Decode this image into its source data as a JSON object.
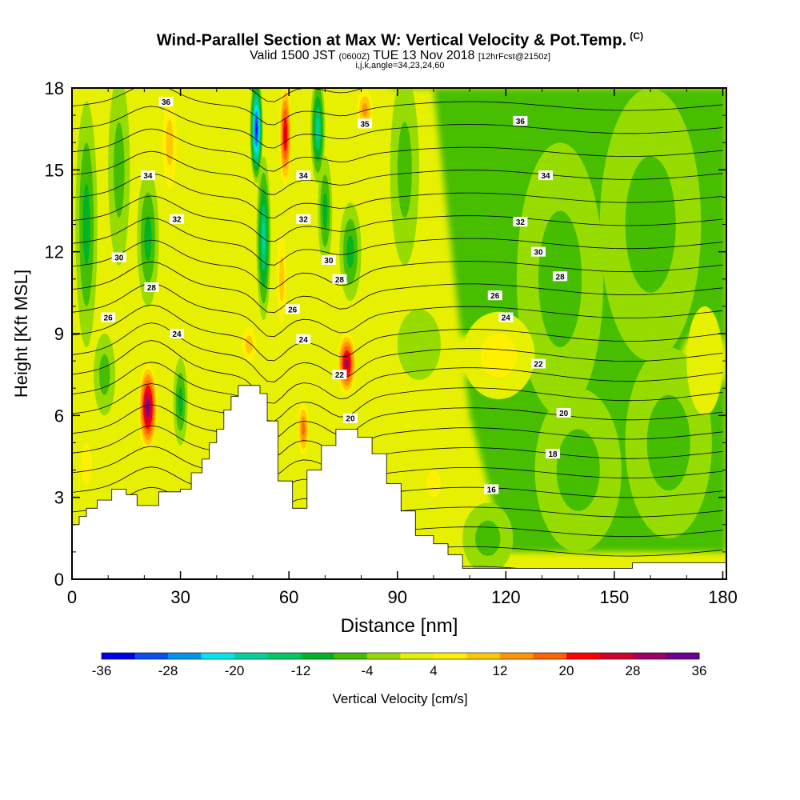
{
  "chart_data": {
    "type": "heatmap",
    "title": "Wind-Parallel Section at Max W: Vertical Velocity & Pot.Temp.",
    "title_mark": "(C)",
    "subtitle_prefix": "Valid 1500 JST",
    "subtitle_z": "(0600Z)",
    "subtitle_date": "TUE 13 Nov 2018",
    "subtitle_fcst": "[12hrFcst@2150z]",
    "subtitle2": "i,j,k,angle=34,23,24,60",
    "xlabel": "Distance [nm]",
    "ylabel": "Height [Kft MSL]",
    "xlim": [
      0,
      181
    ],
    "ylim": [
      0,
      18
    ],
    "x_ticks": [
      "0",
      "30",
      "60",
      "90",
      "120",
      "150",
      "180"
    ],
    "y_ticks": [
      "0",
      "3",
      "6",
      "9",
      "12",
      "15",
      "18"
    ],
    "colorbar": {
      "label": "Vertical Velocity [cm/s]",
      "tick_labels": [
        "-36",
        "-28",
        "-20",
        "-12",
        "-4",
        "4",
        "12",
        "20",
        "28",
        "36"
      ],
      "colors": [
        "#0000f0",
        "#0a50f0",
        "#0096f0",
        "#00e6f0",
        "#00d2a0",
        "#00c864",
        "#00b428",
        "#46be00",
        "#96dc00",
        "#e6f000",
        "#fff000",
        "#ffc800",
        "#ff9600",
        "#ff6400",
        "#ff0000",
        "#d20028",
        "#a00064",
        "#6e0096"
      ]
    },
    "terrain": [
      [
        0,
        2
      ],
      [
        2,
        2.3
      ],
      [
        4,
        2.6
      ],
      [
        7,
        2.9
      ],
      [
        11,
        3.3
      ],
      [
        15,
        3.1
      ],
      [
        18,
        2.7
      ],
      [
        24,
        3.2
      ],
      [
        30,
        3.3
      ],
      [
        33,
        3.9
      ],
      [
        36,
        4.4
      ],
      [
        38,
        5.0
      ],
      [
        40,
        5.5
      ],
      [
        42,
        6.2
      ],
      [
        44,
        6.7
      ],
      [
        46,
        7.1
      ],
      [
        52,
        6.8
      ],
      [
        54,
        5.8
      ],
      [
        57,
        3.6
      ],
      [
        61,
        2.6
      ],
      [
        65,
        4.0
      ],
      [
        69,
        4.9
      ],
      [
        73,
        5.5
      ],
      [
        79,
        5.2
      ],
      [
        83,
        4.6
      ],
      [
        87,
        3.5
      ],
      [
        91,
        2.5
      ],
      [
        95,
        1.6
      ],
      [
        100,
        1.3
      ],
      [
        104,
        0.9
      ],
      [
        108,
        0.4
      ],
      [
        150,
        0.4
      ],
      [
        155,
        0.6
      ],
      [
        181,
        0.6
      ]
    ],
    "theta_labels": [
      {
        "x": 26,
        "y": 17.5,
        "label": "36"
      },
      {
        "x": 81,
        "y": 16.7,
        "label": "35"
      },
      {
        "x": 124,
        "y": 16.8,
        "label": "36"
      },
      {
        "x": 21,
        "y": 14.8,
        "label": "34"
      },
      {
        "x": 64,
        "y": 14.8,
        "label": "34"
      },
      {
        "x": 131,
        "y": 14.8,
        "label": "34"
      },
      {
        "x": 29,
        "y": 13.2,
        "label": "32"
      },
      {
        "x": 64,
        "y": 13.2,
        "label": "32"
      },
      {
        "x": 124,
        "y": 13.1,
        "label": "32"
      },
      {
        "x": 13,
        "y": 11.8,
        "label": "30"
      },
      {
        "x": 71,
        "y": 11.7,
        "label": "30"
      },
      {
        "x": 129,
        "y": 12.0,
        "label": "30"
      },
      {
        "x": 22,
        "y": 10.7,
        "label": "28"
      },
      {
        "x": 74,
        "y": 11.0,
        "label": "28"
      },
      {
        "x": 135,
        "y": 11.1,
        "label": "28"
      },
      {
        "x": 10,
        "y": 9.6,
        "label": "26"
      },
      {
        "x": 61,
        "y": 9.9,
        "label": "26"
      },
      {
        "x": 117,
        "y": 10.4,
        "label": "26"
      },
      {
        "x": 29,
        "y": 9.0,
        "label": "24"
      },
      {
        "x": 64,
        "y": 8.8,
        "label": "24"
      },
      {
        "x": 120,
        "y": 9.6,
        "label": "24"
      },
      {
        "x": 74,
        "y": 7.5,
        "label": "22"
      },
      {
        "x": 129,
        "y": 7.9,
        "label": "22"
      },
      {
        "x": 77,
        "y": 5.9,
        "label": "20"
      },
      {
        "x": 136,
        "y": 6.1,
        "label": "20"
      },
      {
        "x": 133,
        "y": 4.6,
        "label": "18"
      },
      {
        "x": 116,
        "y": 3.3,
        "label": "16"
      }
    ],
    "w_cells": [
      {
        "x": 4,
        "y": 13.0,
        "w": -10,
        "sx": 3,
        "sy": 4.5
      },
      {
        "x": 13,
        "y": 15.0,
        "w": -8,
        "sx": 3,
        "sy": 3.5
      },
      {
        "x": 21,
        "y": 12.5,
        "w": -12,
        "sx": 3,
        "sy": 2.5
      },
      {
        "x": 27,
        "y": 16.0,
        "w": 12,
        "sx": 3,
        "sy": 2.5
      },
      {
        "x": 21,
        "y": 6.3,
        "w": 36,
        "sx": 3,
        "sy": 1.8
      },
      {
        "x": 30,
        "y": 6.5,
        "w": -10,
        "sx": 2,
        "sy": 1.6
      },
      {
        "x": 9,
        "y": 7.5,
        "w": -6,
        "sx": 3,
        "sy": 1.5
      },
      {
        "x": 4,
        "y": 4.2,
        "w": 8,
        "sx": 3,
        "sy": 1.5
      },
      {
        "x": 51,
        "y": 16.5,
        "w": -36,
        "sx": 1.8,
        "sy": 2.0
      },
      {
        "x": 53,
        "y": 12.5,
        "w": -20,
        "sx": 2,
        "sy": 3
      },
      {
        "x": 59,
        "y": 16.3,
        "w": 28,
        "sx": 2,
        "sy": 2.2
      },
      {
        "x": 58,
        "y": 11.0,
        "w": 10,
        "sx": 2,
        "sy": 2.5
      },
      {
        "x": 68,
        "y": 16.5,
        "w": -20,
        "sx": 2,
        "sy": 2.0
      },
      {
        "x": 70,
        "y": 13.5,
        "w": -10,
        "sx": 2,
        "sy": 2.0
      },
      {
        "x": 81,
        "y": 17.2,
        "w": 14,
        "sx": 3,
        "sy": 1.0
      },
      {
        "x": 77,
        "y": 12.0,
        "w": -10,
        "sx": 3,
        "sy": 1.8
      },
      {
        "x": 76,
        "y": 7.9,
        "w": 30,
        "sx": 3,
        "sy": 1.3
      },
      {
        "x": 49,
        "y": 8.6,
        "w": 12,
        "sx": 3,
        "sy": 1.0
      },
      {
        "x": 64,
        "y": 5.5,
        "w": 20,
        "sx": 2,
        "sy": 1.2
      },
      {
        "x": 92,
        "y": 15.0,
        "w": -8,
        "sx": 4,
        "sy": 3.5
      },
      {
        "x": 135,
        "y": 11.0,
        "w": -6,
        "sx": 12,
        "sy": 5.0
      },
      {
        "x": 160,
        "y": 13.0,
        "w": -6,
        "sx": 14,
        "sy": 5.0
      },
      {
        "x": 140,
        "y": 4.0,
        "w": -7,
        "sx": 12,
        "sy": 3.0
      },
      {
        "x": 165,
        "y": 5.0,
        "w": -6,
        "sx": 12,
        "sy": 3.5
      },
      {
        "x": 115,
        "y": 1.5,
        "w": -7,
        "sx": 7,
        "sy": 1.3
      },
      {
        "x": 96,
        "y": 8.6,
        "w": -5,
        "sx": 6,
        "sy": 1.3
      },
      {
        "x": 118,
        "y": 8.2,
        "w": 6,
        "sx": 10,
        "sy": 1.6
      },
      {
        "x": 175,
        "y": 8.0,
        "w": 5,
        "sx": 5,
        "sy": 2.0
      },
      {
        "x": 100,
        "y": 3.5,
        "w": 6,
        "sx": 4,
        "sy": 1.0
      }
    ]
  }
}
